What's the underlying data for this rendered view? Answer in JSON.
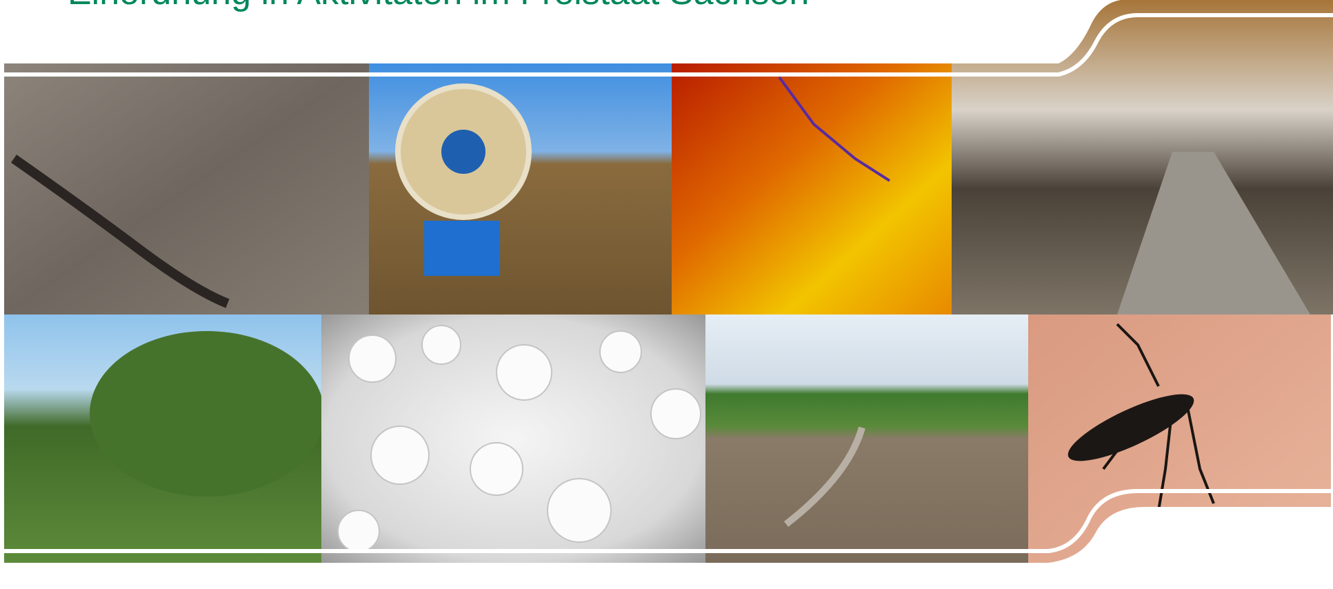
{
  "header": {
    "title": "Einordnung in Aktivitäten im Freistaat Sachsen"
  }
}
